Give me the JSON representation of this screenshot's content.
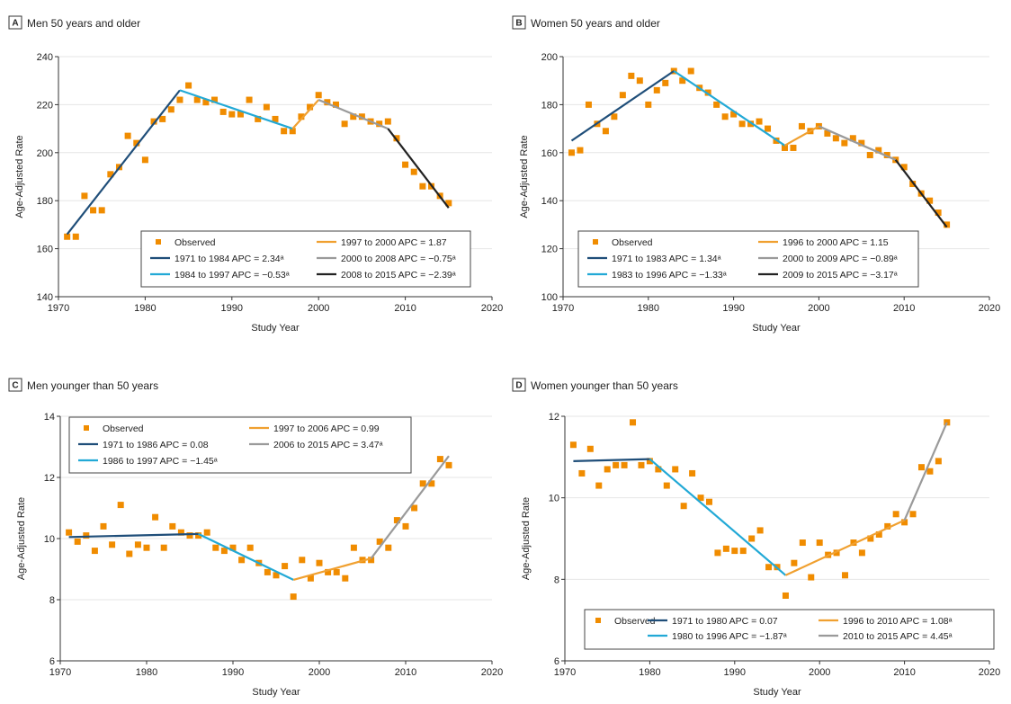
{
  "colors": {
    "observed": "#f08c00",
    "seg_dark": "#1f4e79",
    "seg_cyan": "#22a9d6",
    "seg_orange": "#f0a030",
    "seg_gray": "#9a9a9a",
    "seg_black": "#222222"
  },
  "chart_data": [
    {
      "type": "scatter",
      "letter": "A",
      "title": "Men 50 years and older",
      "xlabel": "Study Year",
      "ylabel": "Age-Adjusted Rate",
      "xlim": [
        1970,
        2020
      ],
      "ylim": [
        140,
        240
      ],
      "xticks": [
        1970,
        1980,
        1990,
        2000,
        2010,
        2020
      ],
      "yticks": [
        140,
        160,
        180,
        200,
        220,
        240
      ],
      "grid": "horizontal",
      "legend_position": "bottom-right",
      "legend_cols": 2,
      "observed_label": "Observed",
      "observed": [
        [
          1971,
          165
        ],
        [
          1972,
          165
        ],
        [
          1973,
          182
        ],
        [
          1974,
          176
        ],
        [
          1975,
          176
        ],
        [
          1976,
          191
        ],
        [
          1977,
          194
        ],
        [
          1978,
          207
        ],
        [
          1979,
          204
        ],
        [
          1980,
          197
        ],
        [
          1981,
          213
        ],
        [
          1982,
          214
        ],
        [
          1983,
          218
        ],
        [
          1984,
          222
        ],
        [
          1985,
          228
        ],
        [
          1986,
          222
        ],
        [
          1987,
          221
        ],
        [
          1988,
          222
        ],
        [
          1989,
          217
        ],
        [
          1990,
          216
        ],
        [
          1991,
          216
        ],
        [
          1992,
          222
        ],
        [
          1993,
          214
        ],
        [
          1994,
          219
        ],
        [
          1995,
          214
        ],
        [
          1996,
          209
        ],
        [
          1997,
          209
        ],
        [
          1998,
          215
        ],
        [
          1999,
          219
        ],
        [
          2000,
          224
        ],
        [
          2001,
          221
        ],
        [
          2002,
          220
        ],
        [
          2003,
          212
        ],
        [
          2004,
          215
        ],
        [
          2005,
          215
        ],
        [
          2006,
          213
        ],
        [
          2007,
          212
        ],
        [
          2008,
          213
        ],
        [
          2009,
          206
        ],
        [
          2010,
          195
        ],
        [
          2011,
          192
        ],
        [
          2012,
          186
        ],
        [
          2013,
          186
        ],
        [
          2014,
          182
        ],
        [
          2015,
          179
        ]
      ],
      "segments": [
        {
          "label": "1971 to 1984 APC = 2.34ᵃ",
          "color": "seg_dark",
          "points": [
            [
              1971,
              166
            ],
            [
              1984,
              226
            ]
          ]
        },
        {
          "label": "1984 to 1997 APC = −0.53ᵃ",
          "color": "seg_cyan",
          "points": [
            [
              1984,
              226
            ],
            [
              1997,
              210
            ]
          ]
        },
        {
          "label": "1997 to 2000 APC = 1.87",
          "color": "seg_orange",
          "points": [
            [
              1997,
              210
            ],
            [
              2000,
              222
            ]
          ]
        },
        {
          "label": "2000 to 2008 APC = −0.75ᵃ",
          "color": "seg_gray",
          "points": [
            [
              2000,
              222
            ],
            [
              2008,
              210
            ]
          ]
        },
        {
          "label": "2008 to 2015 APC = −2.39ᵃ",
          "color": "seg_black",
          "points": [
            [
              2008,
              210
            ],
            [
              2015,
              177
            ]
          ]
        }
      ]
    },
    {
      "type": "scatter",
      "letter": "B",
      "title": "Women 50 years and older",
      "xlabel": "Study Year",
      "ylabel": "Age-Adjusted Rate",
      "xlim": [
        1970,
        2020
      ],
      "ylim": [
        100,
        200
      ],
      "xticks": [
        1970,
        1980,
        1990,
        2000,
        2010,
        2020
      ],
      "yticks": [
        100,
        120,
        140,
        160,
        180,
        200
      ],
      "grid": "horizontal",
      "legend_position": "bottom-right",
      "legend_cols": 2,
      "observed_label": "Observed",
      "observed": [
        [
          1971,
          160
        ],
        [
          1972,
          161
        ],
        [
          1973,
          180
        ],
        [
          1974,
          172
        ],
        [
          1975,
          169
        ],
        [
          1976,
          175
        ],
        [
          1977,
          184
        ],
        [
          1978,
          192
        ],
        [
          1979,
          190
        ],
        [
          1980,
          180
        ],
        [
          1981,
          186
        ],
        [
          1982,
          189
        ],
        [
          1983,
          194
        ],
        [
          1984,
          190
        ],
        [
          1985,
          194
        ],
        [
          1986,
          187
        ],
        [
          1987,
          185
        ],
        [
          1988,
          180
        ],
        [
          1989,
          175
        ],
        [
          1990,
          176
        ],
        [
          1991,
          172
        ],
        [
          1992,
          172
        ],
        [
          1993,
          173
        ],
        [
          1994,
          170
        ],
        [
          1995,
          165
        ],
        [
          1996,
          162
        ],
        [
          1997,
          162
        ],
        [
          1998,
          171
        ],
        [
          1999,
          169
        ],
        [
          2000,
          171
        ],
        [
          2001,
          168
        ],
        [
          2002,
          166
        ],
        [
          2003,
          164
        ],
        [
          2004,
          166
        ],
        [
          2005,
          164
        ],
        [
          2006,
          159
        ],
        [
          2007,
          161
        ],
        [
          2008,
          159
        ],
        [
          2009,
          157
        ],
        [
          2010,
          154
        ],
        [
          2011,
          147
        ],
        [
          2012,
          143
        ],
        [
          2013,
          140
        ],
        [
          2014,
          135
        ],
        [
          2015,
          130
        ]
      ],
      "segments": [
        {
          "label": "1971 to 1983 APC = 1.34ᵃ",
          "color": "seg_dark",
          "points": [
            [
              1971,
              165
            ],
            [
              1983,
              194
            ]
          ]
        },
        {
          "label": "1983 to 1996 APC = −1.33ᵃ",
          "color": "seg_cyan",
          "points": [
            [
              1983,
              194
            ],
            [
              1996,
              163
            ]
          ]
        },
        {
          "label": "1996 to 2000 APC = 1.15",
          "color": "seg_orange",
          "points": [
            [
              1996,
              163
            ],
            [
              2000,
              171
            ]
          ]
        },
        {
          "label": "2000 to 2009 APC = −0.89ᵃ",
          "color": "seg_gray",
          "points": [
            [
              2000,
              171
            ],
            [
              2009,
              157
            ]
          ]
        },
        {
          "label": "2009 to 2015 APC = −3.17ᵃ",
          "color": "seg_black",
          "points": [
            [
              2009,
              157
            ],
            [
              2015,
              129
            ]
          ]
        }
      ]
    },
    {
      "type": "scatter",
      "letter": "C",
      "title": "Men younger than 50 years",
      "xlabel": "Study Year",
      "ylabel": "Age-Adjusted Rate",
      "xlim": [
        1970,
        2020
      ],
      "ylim": [
        6,
        14
      ],
      "xticks": [
        1970,
        1980,
        1990,
        2000,
        2010,
        2020
      ],
      "yticks": [
        6,
        8,
        10,
        12,
        14
      ],
      "grid": "horizontal",
      "legend_position": "top-left",
      "legend_cols": 2,
      "observed_label": "Observed",
      "observed": [
        [
          1971,
          10.2
        ],
        [
          1972,
          9.9
        ],
        [
          1973,
          10.1
        ],
        [
          1974,
          9.6
        ],
        [
          1975,
          10.4
        ],
        [
          1976,
          9.8
        ],
        [
          1977,
          11.1
        ],
        [
          1978,
          9.5
        ],
        [
          1979,
          9.8
        ],
        [
          1980,
          9.7
        ],
        [
          1981,
          10.7
        ],
        [
          1982,
          9.7
        ],
        [
          1983,
          10.4
        ],
        [
          1984,
          10.2
        ],
        [
          1985,
          10.1
        ],
        [
          1986,
          10.1
        ],
        [
          1987,
          10.2
        ],
        [
          1988,
          9.7
        ],
        [
          1989,
          9.6
        ],
        [
          1990,
          9.7
        ],
        [
          1991,
          9.3
        ],
        [
          1992,
          9.7
        ],
        [
          1993,
          9.2
        ],
        [
          1994,
          8.9
        ],
        [
          1995,
          8.8
        ],
        [
          1996,
          9.1
        ],
        [
          1997,
          8.1
        ],
        [
          1998,
          9.3
        ],
        [
          1999,
          8.7
        ],
        [
          2000,
          9.2
        ],
        [
          2001,
          8.9
        ],
        [
          2002,
          8.9
        ],
        [
          2003,
          8.7
        ],
        [
          2004,
          9.7
        ],
        [
          2005,
          9.3
        ],
        [
          2006,
          9.3
        ],
        [
          2007,
          9.9
        ],
        [
          2008,
          9.7
        ],
        [
          2009,
          10.6
        ],
        [
          2010,
          10.4
        ],
        [
          2011,
          11.0
        ],
        [
          2012,
          11.8
        ],
        [
          2013,
          11.8
        ],
        [
          2014,
          12.6
        ],
        [
          2015,
          12.4
        ]
      ],
      "segments": [
        {
          "label": "1971 to 1986 APC = 0.08",
          "color": "seg_dark",
          "points": [
            [
              1971,
              10.05
            ],
            [
              1986,
              10.15
            ]
          ]
        },
        {
          "label": "1986 to 1997 APC = −1.45ᵃ",
          "color": "seg_cyan",
          "points": [
            [
              1986,
              10.15
            ],
            [
              1997,
              8.65
            ]
          ]
        },
        {
          "label": "1997 to 2006 APC = 0.99",
          "color": "seg_orange",
          "points": [
            [
              1997,
              8.65
            ],
            [
              2006,
              9.35
            ]
          ]
        },
        {
          "label": "2006 to 2015 APC = 3.47ᵃ",
          "color": "seg_gray",
          "points": [
            [
              2006,
              9.35
            ],
            [
              2015,
              12.7
            ]
          ]
        }
      ]
    },
    {
      "type": "scatter",
      "letter": "D",
      "title": "Women younger than 50 years",
      "xlabel": "Study Year",
      "ylabel": "Age-Adjusted Rate",
      "xlim": [
        1970,
        2020
      ],
      "ylim": [
        6,
        12
      ],
      "xticks": [
        1970,
        1980,
        1990,
        2000,
        2010,
        2020
      ],
      "yticks": [
        6,
        8,
        10,
        12
      ],
      "grid": "horizontal",
      "legend_position": "bottom-right",
      "legend_cols": 3,
      "observed_label": "Observed",
      "observed": [
        [
          1971,
          11.3
        ],
        [
          1972,
          10.6
        ],
        [
          1973,
          11.2
        ],
        [
          1974,
          10.3
        ],
        [
          1975,
          10.7
        ],
        [
          1976,
          10.8
        ],
        [
          1977,
          10.8
        ],
        [
          1978,
          11.85
        ],
        [
          1979,
          10.8
        ],
        [
          1980,
          10.9
        ],
        [
          1981,
          10.7
        ],
        [
          1982,
          10.3
        ],
        [
          1983,
          10.7
        ],
        [
          1984,
          9.8
        ],
        [
          1985,
          10.6
        ],
        [
          1986,
          10.0
        ],
        [
          1987,
          9.9
        ],
        [
          1988,
          8.65
        ],
        [
          1989,
          8.75
        ],
        [
          1990,
          8.7
        ],
        [
          1991,
          8.7
        ],
        [
          1992,
          9.0
        ],
        [
          1993,
          9.2
        ],
        [
          1994,
          8.3
        ],
        [
          1995,
          8.3
        ],
        [
          1996,
          7.6
        ],
        [
          1997,
          8.4
        ],
        [
          1998,
          8.9
        ],
        [
          1999,
          8.05
        ],
        [
          2000,
          8.9
        ],
        [
          2001,
          8.6
        ],
        [
          2002,
          8.65
        ],
        [
          2003,
          8.1
        ],
        [
          2004,
          8.9
        ],
        [
          2005,
          8.65
        ],
        [
          2006,
          9.0
        ],
        [
          2007,
          9.1
        ],
        [
          2008,
          9.3
        ],
        [
          2009,
          9.6
        ],
        [
          2010,
          9.4
        ],
        [
          2011,
          9.6
        ],
        [
          2012,
          10.75
        ],
        [
          2013,
          10.65
        ],
        [
          2014,
          10.9
        ],
        [
          2015,
          11.85
        ]
      ],
      "segments": [
        {
          "label": "1971 to 1980 APC = 0.07",
          "color": "seg_dark",
          "points": [
            [
              1971,
              10.9
            ],
            [
              1980,
              10.95
            ]
          ]
        },
        {
          "label": "1980 to 1996 APC = −1.87ᵃ",
          "color": "seg_cyan",
          "points": [
            [
              1980,
              10.95
            ],
            [
              1996,
              8.1
            ]
          ]
        },
        {
          "label": "1996 to 2010 APC = 1.08ᵃ",
          "color": "seg_orange",
          "points": [
            [
              1996,
              8.1
            ],
            [
              2010,
              9.45
            ]
          ]
        },
        {
          "label": "2010 to 2015 APC = 4.45ᵃ",
          "color": "seg_gray",
          "points": [
            [
              2010,
              9.45
            ],
            [
              2015,
              11.85
            ]
          ]
        }
      ]
    }
  ]
}
